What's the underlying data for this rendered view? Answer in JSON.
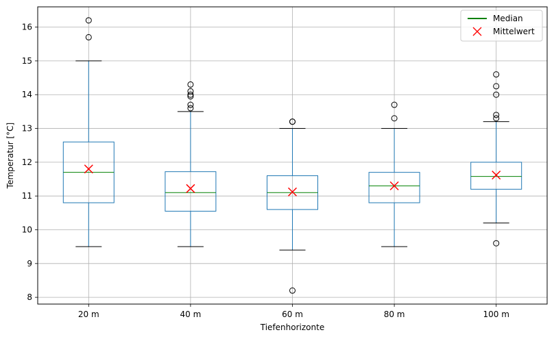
{
  "chart_data": {
    "type": "boxplot",
    "xlabel": "Tiefenhorizonte",
    "ylabel": "Temperatur [°C]",
    "ylim": [
      7.8,
      16.6
    ],
    "yticks": [
      8,
      9,
      10,
      11,
      12,
      13,
      14,
      15,
      16
    ],
    "grid": true,
    "legend": {
      "placement": "top-right",
      "entries": [
        {
          "label": "Median",
          "marker": "line",
          "color": "#008000"
        },
        {
          "label": "Mittelwert",
          "marker": "x",
          "color": "#ff0000"
        }
      ]
    },
    "colors": {
      "box": "#1f77b4",
      "median": "#008000",
      "mean": "#ff0000",
      "cap": "#000000",
      "grid": "#b0b0b0"
    },
    "categories": [
      "20 m",
      "40 m",
      "60 m",
      "80 m",
      "100 m"
    ],
    "boxes": [
      {
        "category": "20 m",
        "whisker_low": 9.5,
        "q1": 10.8,
        "median": 11.7,
        "q3": 12.6,
        "whisker_high": 15.0,
        "mean": 11.8,
        "outliers": [
          15.7,
          16.2
        ]
      },
      {
        "category": "40 m",
        "whisker_low": 9.5,
        "q1": 10.55,
        "median": 11.1,
        "q3": 11.72,
        "whisker_high": 13.5,
        "mean": 11.22,
        "outliers": [
          13.6,
          13.7,
          13.95,
          14.0,
          14.1,
          14.3
        ]
      },
      {
        "category": "60 m",
        "whisker_low": 9.4,
        "q1": 10.6,
        "median": 11.1,
        "q3": 11.6,
        "whisker_high": 13.0,
        "mean": 11.12,
        "outliers": [
          8.2,
          13.2,
          13.2
        ]
      },
      {
        "category": "80 m",
        "whisker_low": 9.5,
        "q1": 10.8,
        "median": 11.3,
        "q3": 11.7,
        "whisker_high": 13.0,
        "mean": 11.3,
        "outliers": [
          13.3,
          13.7
        ]
      },
      {
        "category": "100 m",
        "whisker_low": 10.2,
        "q1": 11.2,
        "median": 11.58,
        "q3": 12.0,
        "whisker_high": 13.2,
        "mean": 11.62,
        "outliers": [
          9.6,
          13.3,
          13.4,
          14.0,
          14.25,
          14.6
        ]
      }
    ]
  }
}
